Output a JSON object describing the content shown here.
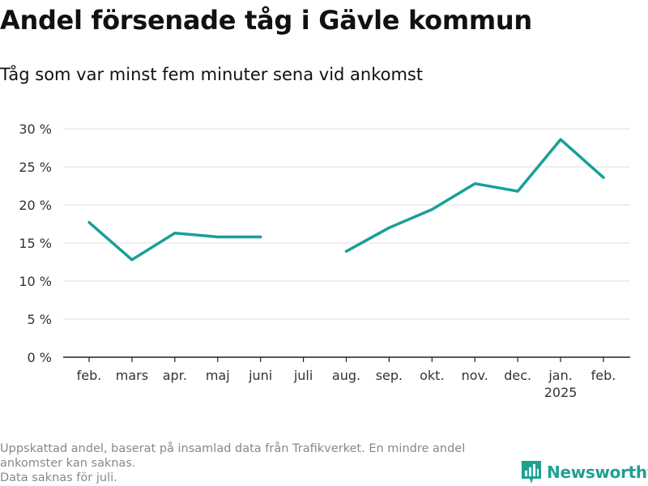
{
  "title": "Andel försenade tåg i Gävle kommun",
  "subtitle": "Tåg som var minst fem minuter sena vid ankomst",
  "footnote": {
    "line1": "Uppskattad andel, baserat på insamlad data från Trafikverket. En mindre andel ankomster kan saknas.",
    "line2": "Data saknas för juli."
  },
  "brand": {
    "name": "Newsworthy",
    "icon": "newsworthy-logo-icon",
    "color": "#1fa093"
  },
  "chart_data": {
    "type": "line",
    "categories": [
      "feb.",
      "mars",
      "apr.",
      "maj",
      "juni",
      "juli",
      "aug.",
      "sep.",
      "okt.",
      "nov.",
      "dec.",
      "jan.",
      "feb."
    ],
    "category_sublabels": [
      "",
      "",
      "",
      "",
      "",
      "",
      "",
      "",
      "",
      "",
      "",
      "2025",
      ""
    ],
    "series": [
      {
        "values": [
          17.7,
          12.8,
          16.3,
          15.8,
          15.8,
          null,
          13.9,
          17.0,
          19.4,
          22.8,
          21.8,
          28.6,
          23.6
        ],
        "color": "#17a097"
      }
    ],
    "ylim": [
      0,
      30
    ],
    "yticks": [
      0,
      5,
      10,
      15,
      20,
      25,
      30
    ],
    "ytick_labels": [
      "0 %",
      "5 %",
      "10 %",
      "15 %",
      "20 %",
      "25 %",
      "30 %"
    ],
    "grid": true
  }
}
